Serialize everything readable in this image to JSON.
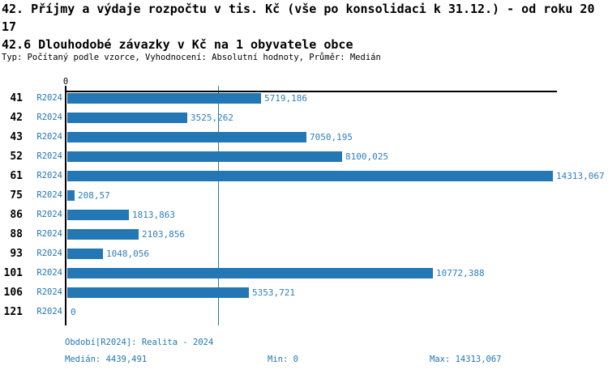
{
  "header": {
    "title_line1": "42. Příjmy a výdaje rozpočtu v tis. Kč (vše po konsolidaci k 31.12.) - od roku 20",
    "title_line2": "17",
    "subtitle": "42.6 Dlouhodobé závazky v Kč na 1 obyvatele obce",
    "meta": "Typ: Počítaný podle vzorce, Vyhodnocení: Absolutní hodnoty, Průměr: Medián"
  },
  "chart_data": {
    "type": "bar",
    "orientation": "horizontal",
    "title": "42.6 Dlouhodobé závazky v Kč na 1 obyvatele obce",
    "categories": [
      "41",
      "42",
      "43",
      "52",
      "61",
      "75",
      "86",
      "88",
      "93",
      "101",
      "106",
      "121"
    ],
    "series": [
      {
        "name": "R2024",
        "values": [
          5719.186,
          3525.262,
          7050.195,
          8100.025,
          14313.067,
          208.57,
          1813.863,
          2103.856,
          1048.056,
          10772.388,
          5353.721,
          0
        ],
        "value_labels": [
          "5719,186",
          "3525,262",
          "7050,195",
          "8100,025",
          "14313,067",
          "208,57",
          "1813,863",
          "2103,856",
          "1048,056",
          "10772,388",
          "5353,721",
          "0"
        ]
      }
    ],
    "xlim": [
      0,
      14313.067
    ],
    "axis_tick_labels": [
      "0"
    ],
    "median_value": 4439.491,
    "bar_color": "#2277b4",
    "grid": false,
    "legend_position": "none"
  },
  "footer": {
    "period": "Období[R2024]: Realita - 2024",
    "median": "Medián: 4439,491",
    "min": "Min: 0",
    "max": "Max: 14313,067"
  }
}
